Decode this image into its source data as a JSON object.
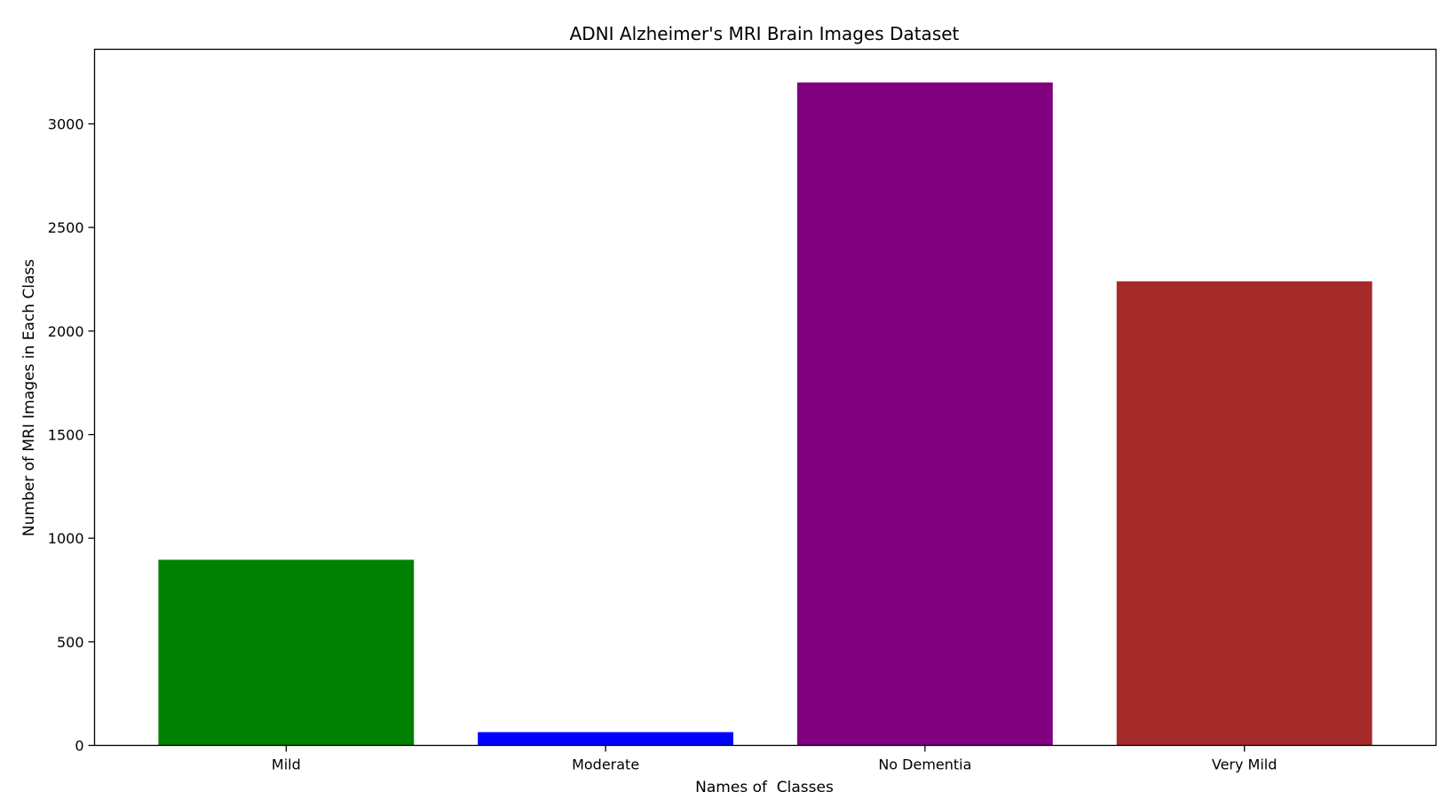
{
  "chart_data": {
    "type": "bar",
    "title": "ADNI Alzheimer's MRI Brain Images Dataset",
    "xlabel": "Names of  Classes",
    "ylabel": "Number of MRI Images in Each Class",
    "categories": [
      "Mild",
      "Moderate",
      "No Dementia",
      "Very Mild"
    ],
    "values": [
      896,
      64,
      3200,
      2240
    ],
    "colors": [
      "#008000",
      "#0000ff",
      "#800080",
      "#a52a2a"
    ],
    "ylim": [
      0,
      3360
    ],
    "yticks": [
      0,
      500,
      1000,
      1500,
      2000,
      2500,
      3000
    ],
    "grid": false,
    "legend": "none"
  }
}
